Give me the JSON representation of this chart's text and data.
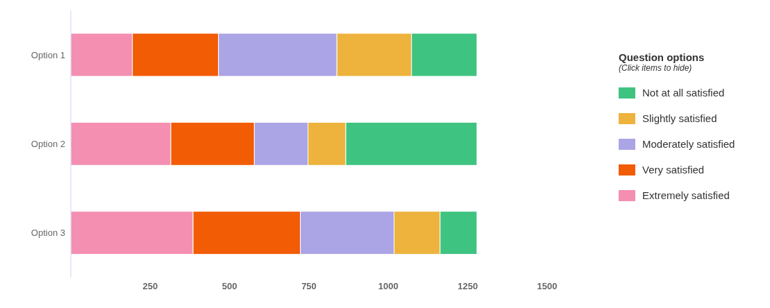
{
  "chart_data": {
    "type": "bar",
    "orientation": "horizontal",
    "stacked": true,
    "categories": [
      "Option 1",
      "Option 2",
      "Option 3"
    ],
    "series": [
      {
        "name": "Extremely satisfied",
        "color": "#f48fb1",
        "values": [
          194,
          315,
          385
        ]
      },
      {
        "name": "Very satisfied",
        "color": "#f15c05",
        "values": [
          271,
          263,
          338
        ]
      },
      {
        "name": "Moderately satisfied",
        "color": "#aba4e5",
        "values": [
          373,
          169,
          295
        ]
      },
      {
        "name": "Slightly satisfied",
        "color": "#edb33d",
        "values": [
          235,
          119,
          145
        ]
      },
      {
        "name": "Not at all satisfied",
        "color": "#3fc380",
        "values": [
          206,
          413,
          116
        ]
      }
    ],
    "xlim": [
      0,
      1500
    ],
    "xticks": [
      250,
      500,
      750,
      1000,
      1250,
      1500
    ],
    "grid": false,
    "legend": "right",
    "legend_title": "Question options",
    "annotations": [
      "(Click items to hide)"
    ]
  }
}
